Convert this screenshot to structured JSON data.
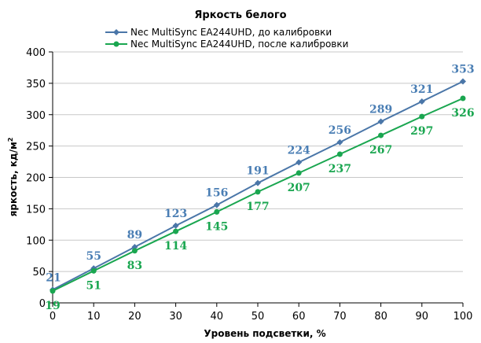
{
  "chart_data": {
    "type": "line",
    "title": "Яркость белого",
    "xlabel": "Уровень подсветки, %",
    "ylabel_main": "яркость, кд/м",
    "ylabel_sup": "2",
    "x": [
      0,
      10,
      20,
      30,
      40,
      50,
      60,
      70,
      80,
      90,
      100
    ],
    "xlim": [
      0,
      100
    ],
    "ylim": [
      0,
      400
    ],
    "xticks": [
      0,
      10,
      20,
      30,
      40,
      50,
      60,
      70,
      80,
      90,
      100
    ],
    "yticks": [
      0,
      50,
      100,
      150,
      200,
      250,
      300,
      350,
      400
    ],
    "grid": "horizontal",
    "legend": "top-center",
    "series": [
      {
        "name": "Nec MultiSync EA244UHD,  до калибровки",
        "values": [
          21,
          55,
          89,
          123,
          156,
          191,
          224,
          256,
          289,
          321,
          353
        ],
        "color": "#4a76a8",
        "label_color": "#4a7eb4",
        "marker": "diamond",
        "label_position": "above"
      },
      {
        "name": "Nec MultiSync EA244UHD,  после калибровки",
        "values": [
          19,
          51,
          83,
          114,
          145,
          177,
          207,
          237,
          267,
          297,
          326
        ],
        "color": "#1aa650",
        "label_color": "#1aa650",
        "marker": "circle",
        "label_position": "below"
      }
    ]
  }
}
